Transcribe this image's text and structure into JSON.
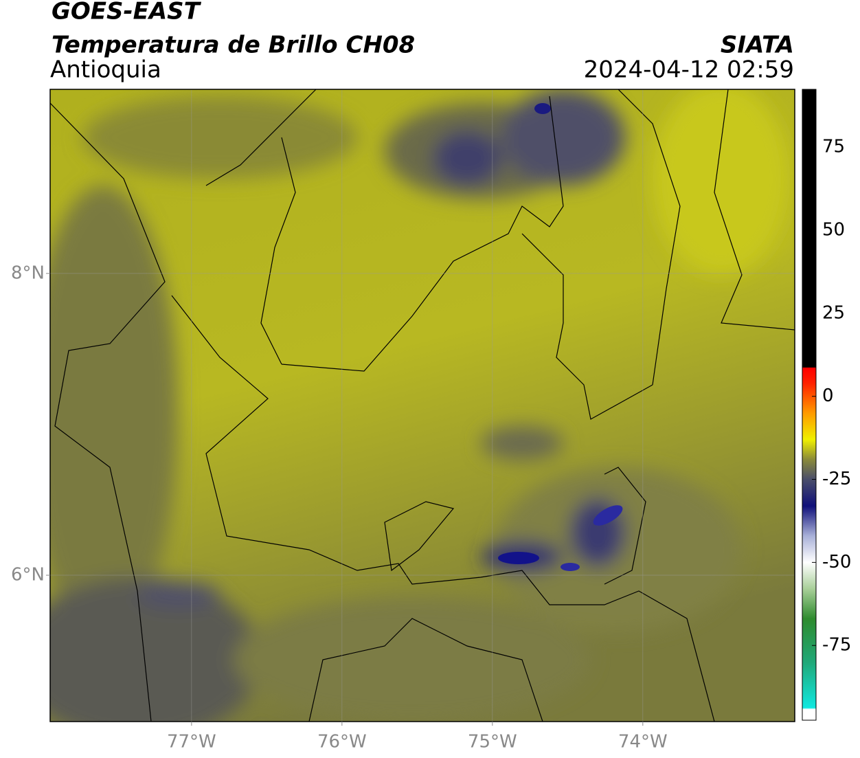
{
  "header": {
    "title": "GOES-EAST",
    "subtitle": "Temperatura de Brillo CH08",
    "region": "Antioquia",
    "source": "SIATA",
    "datetime": "2024-04-12 02:59"
  },
  "map": {
    "lonlim": [
      -77.94,
      -72.99
    ],
    "latlim": [
      5.03,
      9.22
    ],
    "xticks": [
      {
        "value": -77,
        "label": "77°W"
      },
      {
        "value": -76,
        "label": "76°W"
      },
      {
        "value": -75,
        "label": "75°W"
      },
      {
        "value": -74,
        "label": "74°W"
      }
    ],
    "yticks": [
      {
        "value": 6,
        "label": "6°N"
      },
      {
        "value": 8,
        "label": "8°N"
      }
    ],
    "grid": true
  },
  "colorbar": {
    "lim": [
      -97.5,
      92.4
    ],
    "ticks": [
      75,
      50,
      25,
      0,
      -25,
      -50,
      -75
    ],
    "stops": [
      {
        "value": -97.5,
        "color": "#ffffff"
      },
      {
        "value": -94.2,
        "color": "#ffffff"
      },
      {
        "value": -93.8,
        "color": "#10e8e0"
      },
      {
        "value": -80,
        "color": "#20a878"
      },
      {
        "value": -67,
        "color": "#2e8b2e"
      },
      {
        "value": -58,
        "color": "#a8cf98"
      },
      {
        "value": -50,
        "color": "#ffffff"
      },
      {
        "value": -42,
        "color": "#a8b0d8"
      },
      {
        "value": -33,
        "color": "#10107a"
      },
      {
        "value": -25,
        "color": "#4a4e6a"
      },
      {
        "value": -19,
        "color": "#8a8a3a"
      },
      {
        "value": -13,
        "color": "#f0f000"
      },
      {
        "value": -5,
        "color": "#ff9a00"
      },
      {
        "value": 4,
        "color": "#ff2000"
      },
      {
        "value": 8.5,
        "color": "#ff0000"
      },
      {
        "value": 8.8,
        "color": "#000000"
      },
      {
        "value": 92.4,
        "color": "#000000"
      }
    ]
  }
}
